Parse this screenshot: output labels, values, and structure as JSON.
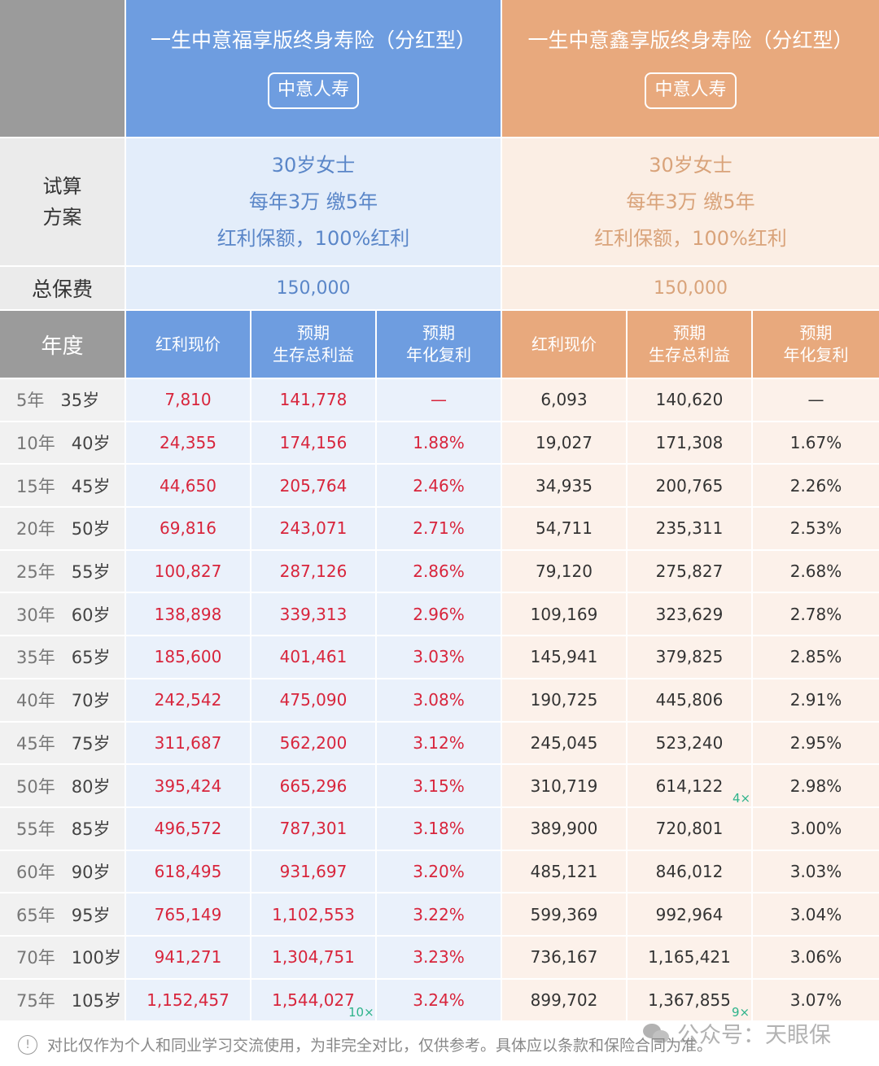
{
  "products": [
    {
      "name": "一生中意福享版终身寿险（分红型）",
      "company": "中意人寿",
      "scheme": [
        "30岁女士",
        "每年3万 缴5年",
        "红利保额，100%红利"
      ],
      "total_premium": "150,000"
    },
    {
      "name": "一生中意鑫享版终身寿险（分红型）",
      "company": "中意人寿",
      "scheme": [
        "30岁女士",
        "每年3万 缴5年",
        "红利保额，100%红利"
      ],
      "total_premium": "150,000"
    }
  ],
  "labels": {
    "scheme": [
      "试算",
      "方案"
    ],
    "total": "总保费",
    "year": "年度"
  },
  "col_headers": [
    [
      "红利现价"
    ],
    [
      "预期",
      "生存总利益"
    ],
    [
      "预期",
      "年化复利"
    ]
  ],
  "rows": [
    [
      "5年",
      "35岁",
      "7,810",
      "141,778",
      "—",
      "6,093",
      "140,620",
      "—"
    ],
    [
      "10年",
      "40岁",
      "24,355",
      "174,156",
      "1.88%",
      "19,027",
      "171,308",
      "1.67%"
    ],
    [
      "15年",
      "45岁",
      "44,650",
      "205,764",
      "2.46%",
      "34,935",
      "200,765",
      "2.26%"
    ],
    [
      "20年",
      "50岁",
      "69,816",
      "243,071",
      "2.71%",
      "54,711",
      "235,311",
      "2.53%"
    ],
    [
      "25年",
      "55岁",
      "100,827",
      "287,126",
      "2.86%",
      "79,120",
      "275,827",
      "2.68%"
    ],
    [
      "30年",
      "60岁",
      "138,898",
      "339,313",
      "2.96%",
      "109,169",
      "323,629",
      "2.78%"
    ],
    [
      "35年",
      "65岁",
      "185,600",
      "401,461",
      "3.03%",
      "145,941",
      "379,825",
      "2.85%"
    ],
    [
      "40年",
      "70岁",
      "242,542",
      "475,090",
      "3.08%",
      "190,725",
      "445,806",
      "2.91%"
    ],
    [
      "45年",
      "75岁",
      "311,687",
      "562,200",
      "3.12%",
      "245,045",
      "523,240",
      "2.95%"
    ],
    [
      "50年",
      "80岁",
      "395,424",
      "665,296",
      "3.15%",
      "310,719",
      "614,122",
      "2.98%"
    ],
    [
      "55年",
      "85岁",
      "496,572",
      "787,301",
      "3.18%",
      "389,900",
      "720,801",
      "3.00%"
    ],
    [
      "60年",
      "90岁",
      "618,495",
      "931,697",
      "3.20%",
      "485,121",
      "846,012",
      "3.03%"
    ],
    [
      "65年",
      "95岁",
      "765,149",
      "1,102,553",
      "3.22%",
      "599,369",
      "992,964",
      "3.04%"
    ],
    [
      "70年",
      "100岁",
      "941,271",
      "1,304,751",
      "3.23%",
      "736,167",
      "1,165,421",
      "3.06%"
    ],
    [
      "75年",
      "105岁",
      "1,152,457",
      "1,544,027",
      "3.24%",
      "899,702",
      "1,367,855",
      "3.07%"
    ]
  ],
  "annotations": {
    "a1": "4×",
    "a2": "10×",
    "a3": "9×"
  },
  "footer": {
    "note": "对比仅作为个人和同业学习交流使用，为非完全对比，仅供参考。具体应以条款和保险合同为准。",
    "watermark": "公众号：天眼保"
  },
  "colors": {
    "blue": "#6e9de0",
    "orange": "#e8a97d",
    "red": "#d8253c",
    "green": "#2db38a"
  }
}
